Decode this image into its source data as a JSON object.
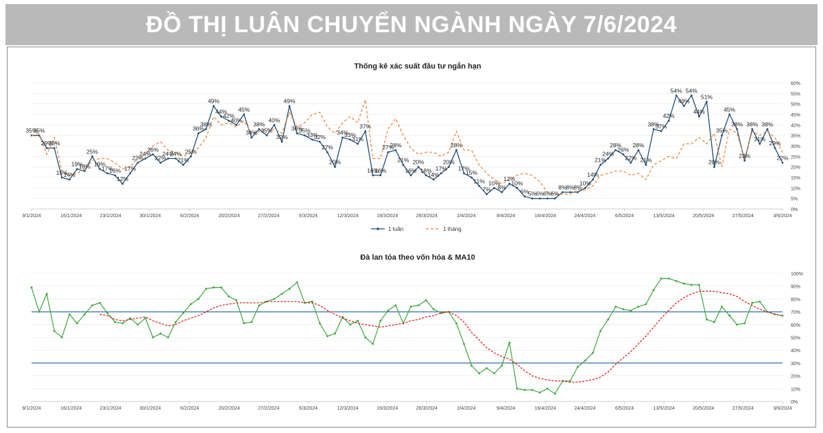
{
  "page_title": "ĐỒ THỊ LUÂN CHUYỂN NGÀNH NGÀY 7/6/2024",
  "chart_data": [
    {
      "type": "line",
      "title": "Thống kê xác suất đầu tư ngắn hạn",
      "x_ticks": [
        "9/1/2024",
        "16/1/2024",
        "23/1/2024",
        "30/1/2024",
        "6/2/2024",
        "20/2/2024",
        "27/2/2024",
        "5/3/2024",
        "12/3/2024",
        "19/3/2024",
        "26/3/2024",
        "2/4/2024",
        "9/4/2024",
        "16/4/2024",
        "24/4/2024",
        "6/5/2024",
        "13/5/2024",
        "20/5/2024",
        "27/5/2024",
        "3/6/2024"
      ],
      "y_ticks": [
        "0%",
        "5%",
        "10%",
        "15%",
        "20%",
        "25%",
        "30%",
        "35%",
        "40%",
        "45%",
        "50%",
        "55%",
        "60%"
      ],
      "ylim": [
        0,
        60
      ],
      "y_unit": "%",
      "legend_position": "bottom",
      "colors": {
        "1 tuần": "#1f4e79",
        "1 tháng": "#ed7d31"
      },
      "series": [
        {
          "name": "1 tuần",
          "values": [
            35,
            35,
            29,
            29,
            15,
            14,
            19,
            18,
            25,
            19,
            17,
            16,
            12,
            17,
            22,
            24,
            26,
            22,
            24,
            24,
            21,
            25,
            36,
            38,
            49,
            44,
            42,
            40,
            45,
            34,
            38,
            35,
            40,
            32,
            49,
            36,
            35,
            33,
            32,
            27,
            20,
            34,
            33,
            31,
            37,
            16,
            16,
            27,
            28,
            21,
            16,
            20,
            16,
            14,
            17,
            20,
            28,
            17,
            15,
            11,
            7,
            10,
            8,
            12,
            10,
            6,
            5,
            5,
            5,
            5,
            8,
            8,
            8,
            10,
            14,
            21,
            24,
            28,
            26,
            22,
            28,
            21,
            38,
            37,
            42,
            54,
            49,
            54,
            44,
            51,
            20,
            35,
            45,
            38,
            23,
            38,
            31,
            38,
            29,
            22
          ]
        },
        {
          "name": "1 tháng",
          "values": [
            35,
            36,
            26,
            34,
            18,
            16,
            17,
            19,
            23,
            24,
            24,
            22,
            19,
            20,
            24,
            26,
            30,
            32,
            28,
            27,
            25,
            27,
            29,
            34,
            44,
            40,
            41,
            39,
            42,
            36,
            37,
            38,
            38,
            36,
            46,
            39,
            41,
            45,
            46,
            39,
            36,
            41,
            44,
            41,
            52,
            24,
            24,
            38,
            43,
            35,
            29,
            26,
            27,
            27,
            25,
            27,
            37,
            28,
            28,
            21,
            17,
            14,
            12,
            14,
            16,
            17,
            16,
            13,
            8,
            7,
            7,
            7,
            9,
            9,
            11,
            16,
            17,
            18,
            18,
            16,
            17,
            14,
            21,
            23,
            25,
            24,
            31,
            31,
            34,
            31,
            36,
            20,
            38,
            36,
            24,
            37,
            35,
            37,
            34,
            27
          ]
        }
      ],
      "data_labels": [
        "35%",
        "35%",
        "29%",
        "28%",
        "15%",
        "14%",
        "19%",
        "18%",
        "25%",
        "19%",
        "17%",
        "16%",
        "12%",
        "17%",
        "22%",
        "24%",
        "26%",
        "22%",
        "24%",
        "24%",
        "21%",
        "25%",
        "36%",
        "38%",
        "49%",
        "44%",
        "42%",
        "40%",
        "45%",
        "34%",
        "38%",
        "35%",
        "40%",
        "32%",
        "49%",
        "36%",
        "35%",
        "33%",
        "32%",
        "27%",
        "20%",
        "34%",
        "33%",
        "31%",
        "37%",
        "16%",
        "16%",
        "27%",
        "28%",
        "21%",
        "16%",
        "20%",
        "16%",
        "14%",
        "17%",
        "20%",
        "28%",
        "17%",
        "15%",
        "11%",
        "7%",
        "10%",
        "8%",
        "12%",
        "10%",
        "6%",
        "5%",
        "6%",
        "6%",
        "6%",
        "8%",
        "8%",
        "8%",
        "10%",
        "14%",
        "21%",
        "24%",
        "28%",
        "26%",
        "22%",
        "28%",
        "21%",
        "38%",
        "37%",
        "42%",
        "54%",
        "49%",
        "54%",
        "44%",
        "51%",
        "20%",
        "35%",
        "45%",
        "38%",
        "23%",
        "38%",
        "31%",
        "38%",
        "29%",
        "22%"
      ]
    },
    {
      "type": "line",
      "title": "Đà lan tỏa theo vốn hóa & MA10",
      "x_ticks": [
        "9/1/2024",
        "16/1/2024",
        "23/1/2024",
        "30/1/2024",
        "6/2/2024",
        "20/2/2024",
        "27/2/2024",
        "5/3/2024",
        "12/3/2024",
        "19/3/2024",
        "26/3/2024",
        "2/4/2024",
        "9/4/2024",
        "16/4/2024",
        "24/4/2024",
        "6/5/2024",
        "13/5/2024",
        "20/5/2024",
        "27/5/2024",
        "3/6/2024"
      ],
      "y_ticks": [
        "0%",
        "10%",
        "20%",
        "30%",
        "40%",
        "50%",
        "60%",
        "70%",
        "80%",
        "90%",
        "100%"
      ],
      "ylim": [
        0,
        100
      ],
      "y_unit": "%",
      "reference_lines": [
        70,
        30
      ],
      "colors": {
        "breadth": "#3aa63a",
        "ma10": "#e0201c",
        "reference": "#2f6f9f"
      },
      "series": [
        {
          "name": "",
          "values": [
            89,
            70,
            84,
            55,
            50,
            68,
            61,
            68,
            75,
            77,
            69,
            62,
            61,
            65,
            60,
            65,
            50,
            53,
            50,
            62,
            69,
            76,
            80,
            88,
            89,
            89,
            82,
            79,
            61,
            62,
            75,
            78,
            80,
            84,
            88,
            93,
            77,
            78,
            61,
            51,
            53,
            66,
            60,
            63,
            50,
            45,
            63,
            71,
            75,
            61,
            74,
            75,
            79,
            72,
            69,
            70,
            61,
            45,
            28,
            22,
            26,
            22,
            28,
            46,
            10,
            9,
            9,
            7,
            10,
            6,
            16,
            16,
            27,
            32,
            38,
            55,
            64,
            74,
            72,
            71,
            74,
            76,
            87,
            96,
            96,
            94,
            92,
            91,
            91,
            64,
            62,
            74,
            67,
            60,
            61,
            77,
            78,
            70,
            68,
            67
          ]
        },
        {
          "name": "MA10",
          "values": [
            null,
            null,
            null,
            null,
            null,
            null,
            null,
            null,
            null,
            68,
            67,
            64,
            63,
            64,
            65,
            66,
            63,
            61,
            59,
            60,
            63,
            65,
            67,
            70,
            73,
            75,
            76,
            77,
            77,
            77,
            77,
            78,
            78,
            78,
            78,
            78,
            77,
            77,
            75,
            71,
            68,
            65,
            63,
            61,
            60,
            59,
            58,
            59,
            60,
            61,
            63,
            64,
            66,
            67,
            69,
            70,
            67,
            62,
            54,
            48,
            42,
            38,
            35,
            33,
            29,
            24,
            20,
            18,
            17,
            16,
            16,
            15,
            15,
            16,
            17,
            19,
            23,
            29,
            34,
            39,
            45,
            51,
            58,
            65,
            71,
            77,
            81,
            84,
            86,
            86,
            86,
            85,
            84,
            82,
            78,
            75,
            72,
            70,
            68,
            67
          ]
        }
      ]
    }
  ]
}
